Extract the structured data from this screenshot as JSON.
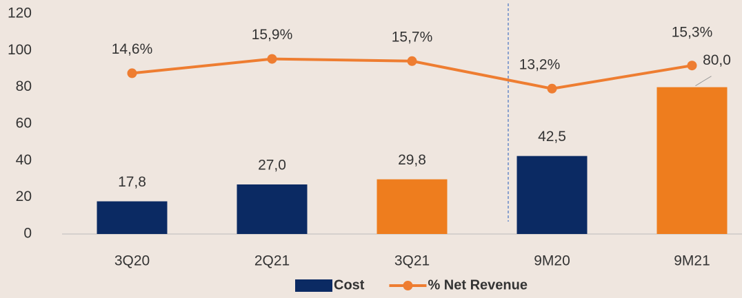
{
  "chart_data": {
    "type": "bar",
    "categories": [
      "3Q20",
      "2Q21",
      "3Q21",
      "9M20",
      "9M21"
    ],
    "series": [
      {
        "name": "Cost",
        "type": "bar",
        "color": "#0b2a63",
        "colors": [
          "#0b2a63",
          "#0b2a63",
          "#ee7d1e",
          "#0b2a63",
          "#ee7d1e"
        ],
        "values": [
          17.8,
          27.0,
          29.8,
          42.5,
          80.0
        ],
        "value_labels": [
          "17,8",
          "27,0",
          "29,8",
          "42,5",
          "80,0"
        ]
      },
      {
        "name": "% Net Revenue",
        "type": "line",
        "axis": "y2",
        "color": "#ee7d31",
        "values": [
          14.6,
          15.9,
          15.7,
          13.2,
          15.3
        ],
        "value_labels": [
          "14,6%",
          "15,9%",
          "15,7%",
          "13,2%",
          "15,3%"
        ]
      }
    ],
    "ylim": [
      0,
      120
    ],
    "yticks": [
      0,
      20,
      40,
      60,
      80,
      100,
      120
    ],
    "y2lim": [
      0,
      20
    ],
    "grid": false,
    "legend": "bottom"
  }
}
